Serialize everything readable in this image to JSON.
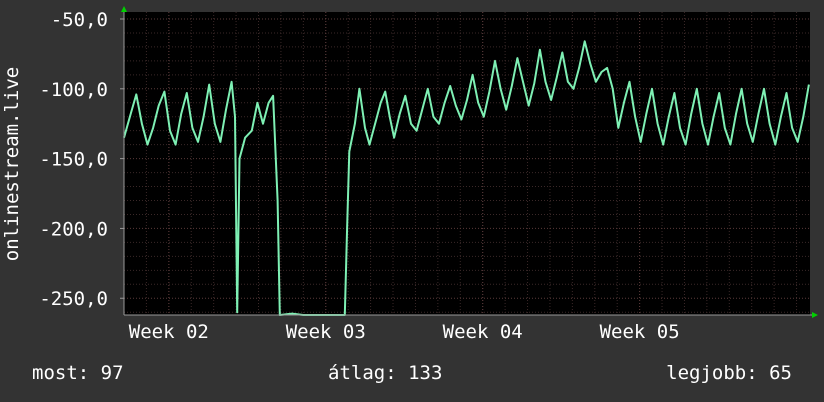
{
  "chart_data": {
    "type": "line",
    "ylabel": "onlinestream.live",
    "ylim": [
      -262,
      -45
    ],
    "y_ticks": [
      {
        "value": -50,
        "label": "-50,0"
      },
      {
        "value": -100,
        "label": "-100,0"
      },
      {
        "value": -150,
        "label": "-150,0"
      },
      {
        "value": -200,
        "label": "-200,0"
      },
      {
        "value": -250,
        "label": "-250,0"
      }
    ],
    "x_unit": "day",
    "xlim": [
      0,
      30.6
    ],
    "x_ticks": [
      {
        "value": 2.0,
        "label": "Week 02"
      },
      {
        "value": 9.0,
        "label": "Week 03"
      },
      {
        "value": 16.0,
        "label": "Week 04"
      },
      {
        "value": 23.0,
        "label": "Week 05"
      }
    ],
    "grid": true,
    "colors": {
      "background": "#333333",
      "plot": "#000000",
      "line": "#7ef0b4",
      "grid_major": "#5a3a3a",
      "grid_minor": "#3a2828",
      "axis_arrow": "#00d000"
    },
    "series": [
      {
        "values": [
          [
            0.0,
            -135
          ],
          [
            0.3,
            -118
          ],
          [
            0.55,
            -104
          ],
          [
            0.8,
            -125
          ],
          [
            1.05,
            -140
          ],
          [
            1.3,
            -128
          ],
          [
            1.55,
            -112
          ],
          [
            1.8,
            -102
          ],
          [
            2.05,
            -130
          ],
          [
            2.3,
            -140
          ],
          [
            2.55,
            -118
          ],
          [
            2.8,
            -103
          ],
          [
            3.05,
            -128
          ],
          [
            3.3,
            -138
          ],
          [
            3.55,
            -120
          ],
          [
            3.8,
            -97
          ],
          [
            4.05,
            -125
          ],
          [
            4.3,
            -138
          ],
          [
            4.55,
            -115
          ],
          [
            4.8,
            -95
          ],
          [
            4.95,
            -120
          ],
          [
            5.05,
            -260
          ],
          [
            5.15,
            -150
          ],
          [
            5.4,
            -135
          ],
          [
            5.7,
            -130
          ],
          [
            5.95,
            -110
          ],
          [
            6.2,
            -125
          ],
          [
            6.45,
            -110
          ],
          [
            6.65,
            -105
          ],
          [
            6.85,
            -180
          ],
          [
            6.95,
            -262
          ],
          [
            7.5,
            -261
          ],
          [
            8.0,
            -262
          ],
          [
            8.5,
            -262
          ],
          [
            9.0,
            -262
          ],
          [
            9.5,
            -262
          ],
          [
            9.85,
            -262
          ],
          [
            9.95,
            -200
          ],
          [
            10.05,
            -145
          ],
          [
            10.3,
            -125
          ],
          [
            10.5,
            -100
          ],
          [
            10.75,
            -128
          ],
          [
            10.95,
            -140
          ],
          [
            11.2,
            -125
          ],
          [
            11.45,
            -110
          ],
          [
            11.65,
            -102
          ],
          [
            11.85,
            -120
          ],
          [
            12.05,
            -135
          ],
          [
            12.3,
            -118
          ],
          [
            12.55,
            -105
          ],
          [
            12.8,
            -125
          ],
          [
            13.05,
            -130
          ],
          [
            13.3,
            -115
          ],
          [
            13.55,
            -100
          ],
          [
            13.8,
            -120
          ],
          [
            14.05,
            -125
          ],
          [
            14.3,
            -110
          ],
          [
            14.55,
            -98
          ],
          [
            14.8,
            -112
          ],
          [
            15.05,
            -122
          ],
          [
            15.3,
            -108
          ],
          [
            15.55,
            -90
          ],
          [
            15.8,
            -110
          ],
          [
            16.05,
            -120
          ],
          [
            16.3,
            -102
          ],
          [
            16.55,
            -80
          ],
          [
            16.8,
            -100
          ],
          [
            17.05,
            -115
          ],
          [
            17.3,
            -98
          ],
          [
            17.55,
            -78
          ],
          [
            17.8,
            -95
          ],
          [
            18.05,
            -112
          ],
          [
            18.3,
            -96
          ],
          [
            18.55,
            -72
          ],
          [
            18.8,
            -95
          ],
          [
            19.05,
            -108
          ],
          [
            19.3,
            -92
          ],
          [
            19.55,
            -74
          ],
          [
            19.8,
            -95
          ],
          [
            20.05,
            -100
          ],
          [
            20.3,
            -85
          ],
          [
            20.55,
            -66
          ],
          [
            20.8,
            -82
          ],
          [
            21.05,
            -95
          ],
          [
            21.3,
            -88
          ],
          [
            21.55,
            -85
          ],
          [
            21.8,
            -100
          ],
          [
            22.05,
            -128
          ],
          [
            22.3,
            -110
          ],
          [
            22.55,
            -95
          ],
          [
            22.8,
            -120
          ],
          [
            23.05,
            -138
          ],
          [
            23.3,
            -118
          ],
          [
            23.55,
            -100
          ],
          [
            23.8,
            -125
          ],
          [
            24.05,
            -140
          ],
          [
            24.3,
            -120
          ],
          [
            24.55,
            -103
          ],
          [
            24.8,
            -128
          ],
          [
            25.05,
            -140
          ],
          [
            25.3,
            -118
          ],
          [
            25.55,
            -100
          ],
          [
            25.8,
            -125
          ],
          [
            26.05,
            -140
          ],
          [
            26.3,
            -120
          ],
          [
            26.55,
            -103
          ],
          [
            26.8,
            -128
          ],
          [
            27.05,
            -140
          ],
          [
            27.3,
            -118
          ],
          [
            27.55,
            -100
          ],
          [
            27.8,
            -125
          ],
          [
            28.05,
            -138
          ],
          [
            28.3,
            -118
          ],
          [
            28.55,
            -100
          ],
          [
            28.8,
            -125
          ],
          [
            29.05,
            -140
          ],
          [
            29.3,
            -120
          ],
          [
            29.55,
            -103
          ],
          [
            29.8,
            -128
          ],
          [
            30.05,
            -138
          ],
          [
            30.3,
            -120
          ],
          [
            30.55,
            -97
          ]
        ]
      }
    ]
  },
  "stats": {
    "current": "most: 97",
    "average": "átlag: 133",
    "best": "legjobb: 65"
  }
}
